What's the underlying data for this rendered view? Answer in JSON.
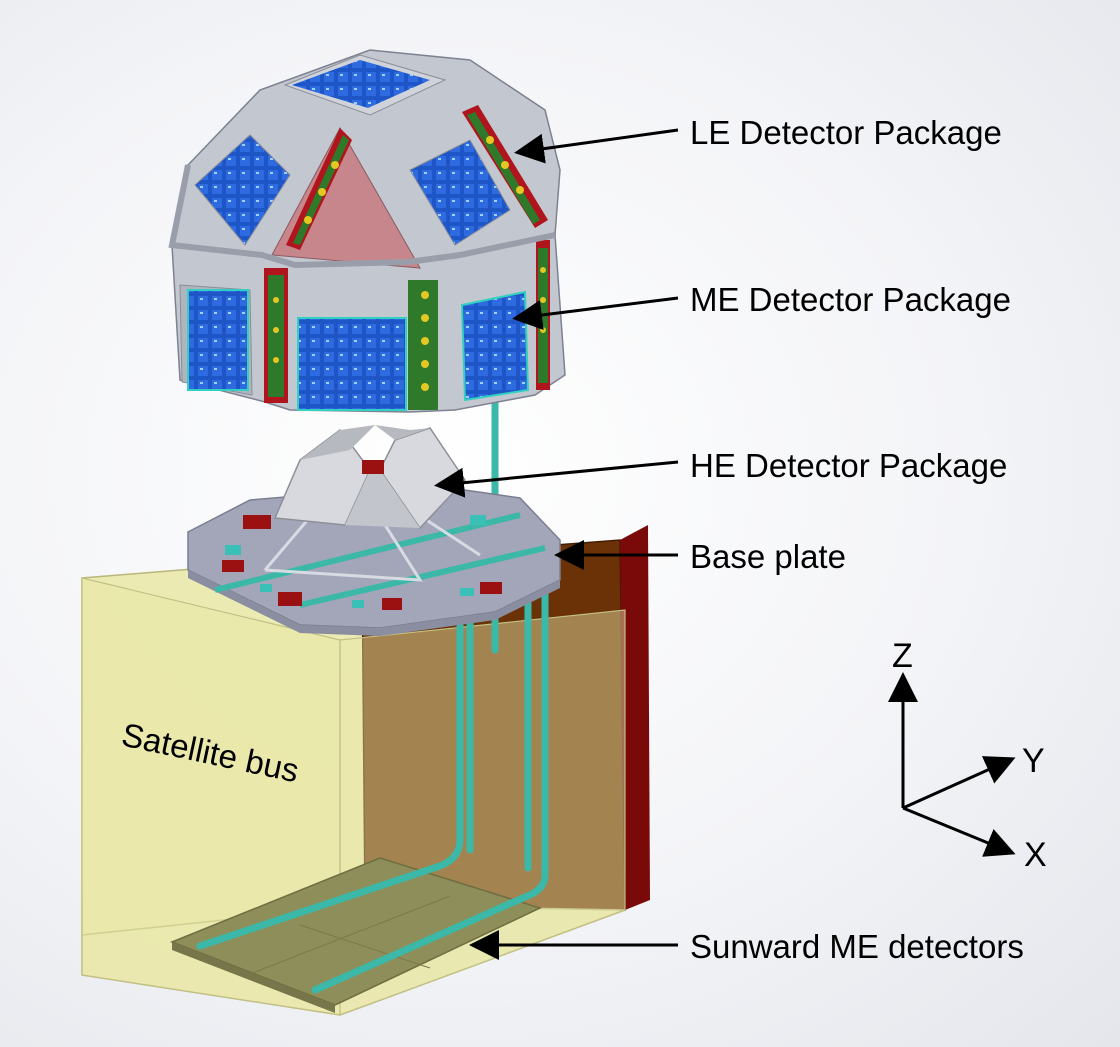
{
  "labels": {
    "le": "LE Detector Package",
    "me": "ME Detector Package",
    "he": "HE Detector Package",
    "base": "Base plate",
    "sunward": "Sunward ME detectors"
  },
  "bus_label": "Satellite bus",
  "axes": {
    "z": "Z",
    "y": "Y",
    "x": "X"
  },
  "colors": {
    "bus": "#e9e7a6",
    "panel_brown": "#6b3208",
    "panel_red": "#7a0a0a",
    "frame": "#c3c7d0",
    "plate": "#a2a6b8",
    "detector_blue": "#1e56c8",
    "pipe": "#3bb8a8",
    "strip_green": "#2f7a2a",
    "strip_red": "#b0141c",
    "dot_yellow": "#e3c824",
    "pink_panel": "#c7868c"
  }
}
